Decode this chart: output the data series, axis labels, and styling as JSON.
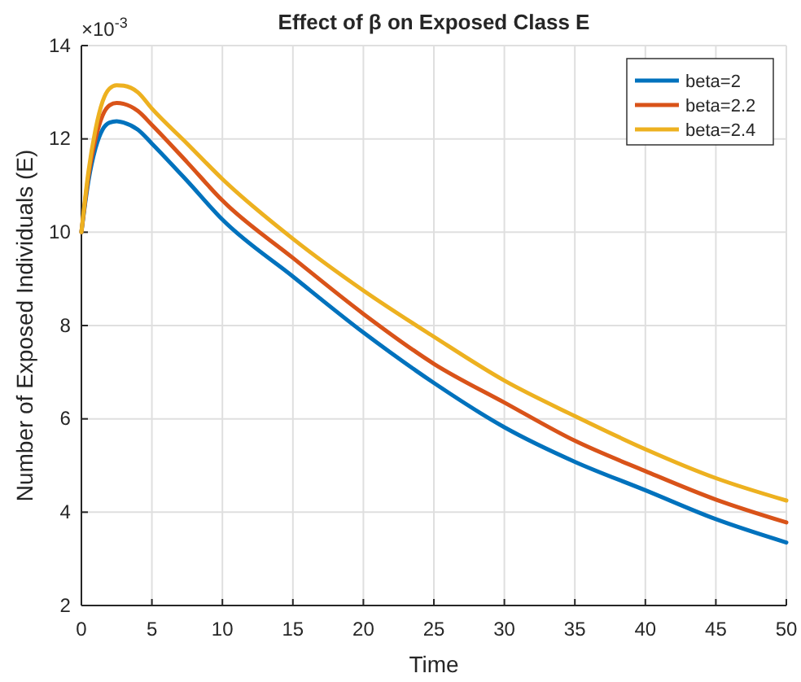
{
  "chart_data": {
    "type": "line",
    "title": "Effect of β on Exposed Class E",
    "xlabel": "Time",
    "ylabel": "Number of Exposed Individuals (E)",
    "annotations": [
      "×10$^{-3}$"
    ],
    "x": [
      0,
      0.5,
      1,
      1.5,
      2,
      2.5,
      3,
      4,
      5,
      7.5,
      10,
      15,
      20,
      25,
      30,
      35,
      40,
      45,
      50
    ],
    "series": [
      {
        "name": "beta=2",
        "color": "#0072bd",
        "values": [
          10,
          11.1,
          11.8,
          12.2,
          12.35,
          12.38,
          12.35,
          12.2,
          11.9,
          11.1,
          10.27,
          9.05,
          7.85,
          6.77,
          5.82,
          5.08,
          4.47,
          3.85,
          3.35
        ]
      },
      {
        "name": "beta=2.2",
        "color": "#d95319",
        "values": [
          10,
          11.2,
          12.0,
          12.5,
          12.72,
          12.77,
          12.75,
          12.6,
          12.3,
          11.5,
          10.68,
          9.45,
          8.25,
          7.18,
          6.35,
          5.53,
          4.88,
          4.27,
          3.78
        ]
      },
      {
        "name": "beta=2.4",
        "color": "#edb120",
        "values": [
          10,
          11.3,
          12.2,
          12.8,
          13.08,
          13.15,
          13.14,
          13.0,
          12.65,
          11.9,
          11.14,
          9.86,
          8.75,
          7.76,
          6.82,
          6.06,
          5.35,
          4.73,
          4.25
        ]
      }
    ],
    "xlim": [
      0,
      50
    ],
    "xticks": [
      0,
      5,
      10,
      15,
      20,
      25,
      30,
      35,
      40,
      45,
      50
    ],
    "ylim": [
      2,
      14
    ],
    "yticks": [
      2,
      4,
      6,
      8,
      10,
      12,
      14
    ],
    "grid": true,
    "legend": "top right",
    "line_style": "solid",
    "marker": "none"
  }
}
